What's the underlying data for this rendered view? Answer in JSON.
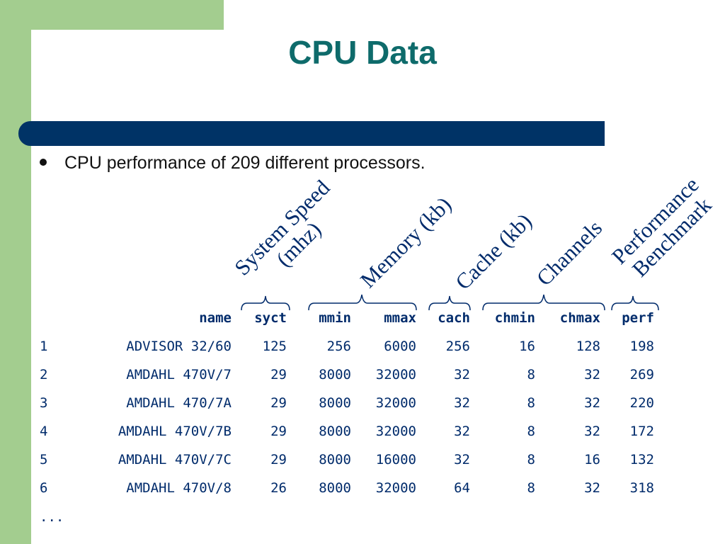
{
  "slide": {
    "title": "CPU Data",
    "bullet": "CPU performance of 209 different processors.",
    "ellipsis": "...",
    "colors": {
      "title": "#0e6b6b",
      "bar": "#003366",
      "green": "#a3cd8f",
      "table_text": "#002b6b"
    }
  },
  "annotations": {
    "system_speed_1": "System Speed",
    "system_speed_2": "(mhz)",
    "memory": "Memory (kb)",
    "cache": "Cache (kb)",
    "channels": "Channels",
    "performance_1": "Performance",
    "performance_2": "Benchmark"
  },
  "table": {
    "headers": [
      "name",
      "syct",
      "mmin",
      "mmax",
      "cach",
      "chmin",
      "chmax",
      "perf"
    ],
    "rows": [
      [
        "1",
        "ADVISOR 32/60",
        "125",
        "256",
        "6000",
        "256",
        "16",
        "128",
        "198"
      ],
      [
        "2",
        "AMDAHL 470V/7",
        "29",
        "8000",
        "32000",
        "32",
        "8",
        "32",
        "269"
      ],
      [
        "3",
        "AMDAHL 470/7A",
        "29",
        "8000",
        "32000",
        "32",
        "8",
        "32",
        "220"
      ],
      [
        "4",
        "AMDAHL 470V/7B",
        "29",
        "8000",
        "32000",
        "32",
        "8",
        "32",
        "172"
      ],
      [
        "5",
        "AMDAHL 470V/7C",
        "29",
        "8000",
        "16000",
        "32",
        "8",
        "16",
        "132"
      ],
      [
        "6",
        "AMDAHL 470V/8",
        "26",
        "8000",
        "32000",
        "64",
        "8",
        "32",
        "318"
      ]
    ]
  }
}
